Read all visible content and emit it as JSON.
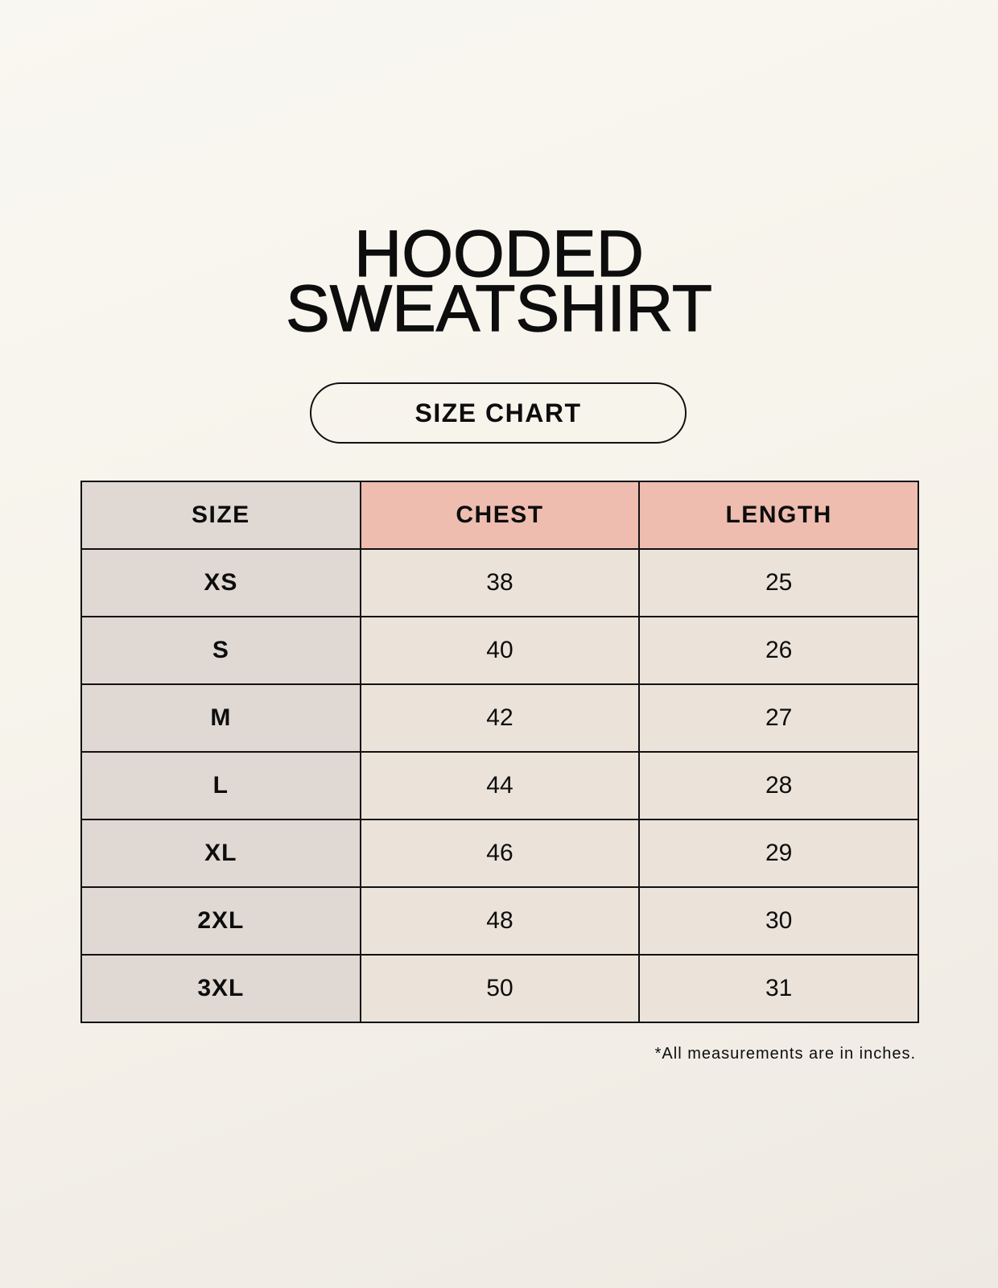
{
  "title": {
    "line1": "HOODED",
    "line2": "SWEATSHIRT"
  },
  "badge": "SIZE CHART",
  "table": {
    "headers": [
      "SIZE",
      "CHEST",
      "LENGTH"
    ],
    "rows": [
      [
        "XS",
        "38",
        "25"
      ],
      [
        "S",
        "40",
        "26"
      ],
      [
        "M",
        "42",
        "27"
      ],
      [
        "L",
        "44",
        "28"
      ],
      [
        "XL",
        "46",
        "29"
      ],
      [
        "2XL",
        "48",
        "30"
      ],
      [
        "3XL",
        "50",
        "31"
      ]
    ]
  },
  "footnote": "*All measurements are in inches.",
  "colors": {
    "size_column": "#e0d8d3",
    "header_accent": "#eebdb0",
    "cell": "#ebe3d9"
  }
}
